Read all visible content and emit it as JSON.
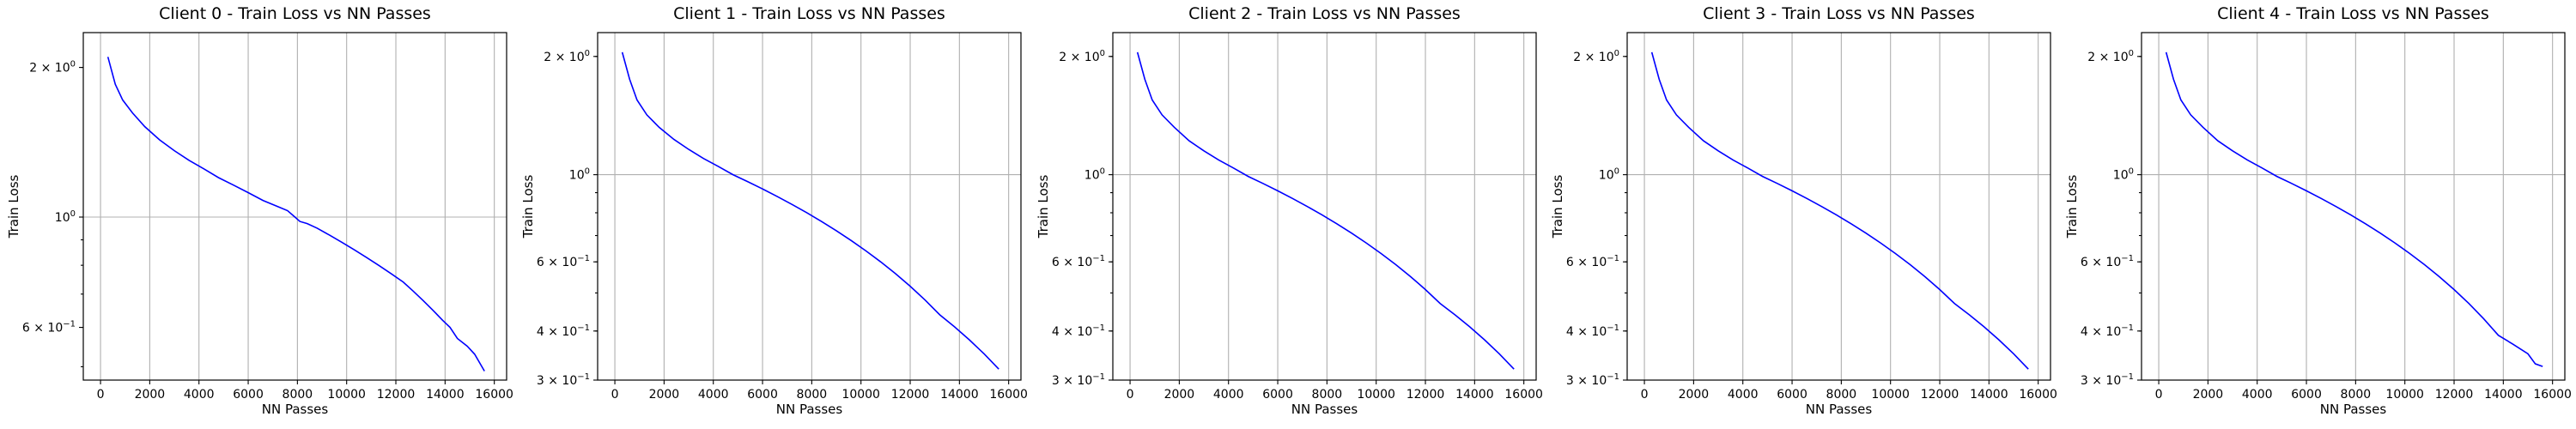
{
  "chart_data": [
    {
      "type": "line",
      "title": "Client 0 - Train Loss vs NN Passes",
      "xlabel": "NN Passes",
      "ylabel": "Train Loss",
      "yscale": "log",
      "xlim": [
        -700,
        16500
      ],
      "ylim": [
        0.47,
        2.35
      ],
      "grid": true,
      "xticks": [
        0,
        2000,
        4000,
        6000,
        8000,
        10000,
        12000,
        14000,
        16000
      ],
      "xtick_labels": [
        "0",
        "2000",
        "4000",
        "6000",
        "8000",
        "10000",
        "12000",
        "14000",
        "16000"
      ],
      "yticks": [
        {
          "value": 2.0,
          "base": "2 × 10",
          "exp": "0"
        },
        {
          "value": 1.0,
          "base": "10",
          "exp": "0"
        },
        {
          "value": 0.6,
          "base": "6 × 10",
          "exp": "−1"
        }
      ],
      "series": [
        {
          "name": "train loss",
          "color": "#0000ff",
          "x": [
            300,
            600,
            900,
            1300,
            1800,
            2400,
            3000,
            3600,
            4200,
            4800,
            5400,
            6000,
            6600,
            7200,
            7600,
            7900,
            8100,
            8400,
            8800,
            9300,
            9800,
            10300,
            10800,
            11300,
            11800,
            12300,
            12700,
            13100,
            13500,
            13900,
            14200,
            14500,
            14900,
            15200,
            15600
          ],
          "y": [
            2.1,
            1.85,
            1.72,
            1.62,
            1.52,
            1.43,
            1.36,
            1.3,
            1.25,
            1.2,
            1.16,
            1.12,
            1.08,
            1.05,
            1.03,
            1.0,
            0.98,
            0.97,
            0.95,
            0.92,
            0.89,
            0.86,
            0.83,
            0.8,
            0.77,
            0.74,
            0.71,
            0.68,
            0.65,
            0.62,
            0.6,
            0.57,
            0.55,
            0.53,
            0.49
          ]
        }
      ]
    },
    {
      "type": "line",
      "title": "Client 1 - Train Loss vs NN Passes",
      "xlabel": "NN Passes",
      "ylabel": "Train Loss",
      "yscale": "log",
      "xlim": [
        -700,
        16500
      ],
      "ylim": [
        0.3,
        2.3
      ],
      "grid": true,
      "xticks": [
        0,
        2000,
        4000,
        6000,
        8000,
        10000,
        12000,
        14000,
        16000
      ],
      "xtick_labels": [
        "0",
        "2000",
        "4000",
        "6000",
        "8000",
        "10000",
        "12000",
        "14000",
        "16000"
      ],
      "yticks": [
        {
          "value": 2.0,
          "base": "2 × 10",
          "exp": "0"
        },
        {
          "value": 1.0,
          "base": "10",
          "exp": "0"
        },
        {
          "value": 0.6,
          "base": "6 × 10",
          "exp": "−1"
        },
        {
          "value": 0.4,
          "base": "4 × 10",
          "exp": "−1"
        },
        {
          "value": 0.3,
          "base": "3 × 10",
          "exp": "−1"
        }
      ],
      "series": [
        {
          "name": "train loss",
          "color": "#0000ff",
          "x": [
            300,
            600,
            900,
            1300,
            1800,
            2400,
            3000,
            3600,
            4200,
            4800,
            5400,
            6000,
            6600,
            7200,
            7800,
            8400,
            9000,
            9600,
            10200,
            10800,
            11400,
            12000,
            12600,
            13200,
            13800,
            14400,
            15000,
            15600
          ],
          "y": [
            2.05,
            1.75,
            1.55,
            1.42,
            1.32,
            1.23,
            1.16,
            1.1,
            1.05,
            1.0,
            0.96,
            0.92,
            0.88,
            0.84,
            0.8,
            0.76,
            0.72,
            0.68,
            0.64,
            0.6,
            0.56,
            0.52,
            0.48,
            0.44,
            0.41,
            0.38,
            0.35,
            0.32
          ]
        }
      ]
    },
    {
      "type": "line",
      "title": "Client 2 - Train Loss vs NN Passes",
      "xlabel": "NN Passes",
      "ylabel": "Train Loss",
      "yscale": "log",
      "xlim": [
        -700,
        16500
      ],
      "ylim": [
        0.3,
        2.3
      ],
      "grid": true,
      "xticks": [
        0,
        2000,
        4000,
        6000,
        8000,
        10000,
        12000,
        14000,
        16000
      ],
      "xtick_labels": [
        "0",
        "2000",
        "4000",
        "6000",
        "8000",
        "10000",
        "12000",
        "14000",
        "16000"
      ],
      "yticks": [
        {
          "value": 2.0,
          "base": "2 × 10",
          "exp": "0"
        },
        {
          "value": 1.0,
          "base": "10",
          "exp": "0"
        },
        {
          "value": 0.6,
          "base": "6 × 10",
          "exp": "−1"
        },
        {
          "value": 0.4,
          "base": "4 × 10",
          "exp": "−1"
        },
        {
          "value": 0.3,
          "base": "3 × 10",
          "exp": "−1"
        }
      ],
      "series": [
        {
          "name": "train loss",
          "color": "#0000ff",
          "x": [
            300,
            600,
            900,
            1300,
            1800,
            2400,
            3000,
            3600,
            4200,
            4800,
            5400,
            6000,
            6600,
            7200,
            7800,
            8400,
            9000,
            9600,
            10200,
            10800,
            11400,
            12000,
            12600,
            13200,
            13800,
            14400,
            15000,
            15600
          ],
          "y": [
            2.05,
            1.75,
            1.55,
            1.42,
            1.32,
            1.22,
            1.15,
            1.09,
            1.04,
            0.99,
            0.95,
            0.91,
            0.87,
            0.83,
            0.79,
            0.75,
            0.71,
            0.67,
            0.63,
            0.59,
            0.55,
            0.51,
            0.47,
            0.44,
            0.41,
            0.38,
            0.35,
            0.32
          ]
        }
      ]
    },
    {
      "type": "line",
      "title": "Client 3 - Train Loss vs NN Passes",
      "xlabel": "NN Passes",
      "ylabel": "Train Loss",
      "yscale": "log",
      "xlim": [
        -700,
        16500
      ],
      "ylim": [
        0.3,
        2.3
      ],
      "grid": true,
      "xticks": [
        0,
        2000,
        4000,
        6000,
        8000,
        10000,
        12000,
        14000,
        16000
      ],
      "xtick_labels": [
        "0",
        "2000",
        "4000",
        "6000",
        "8000",
        "10000",
        "12000",
        "14000",
        "16000"
      ],
      "yticks": [
        {
          "value": 2.0,
          "base": "2 × 10",
          "exp": "0"
        },
        {
          "value": 1.0,
          "base": "10",
          "exp": "0"
        },
        {
          "value": 0.6,
          "base": "6 × 10",
          "exp": "−1"
        },
        {
          "value": 0.4,
          "base": "4 × 10",
          "exp": "−1"
        },
        {
          "value": 0.3,
          "base": "3 × 10",
          "exp": "−1"
        }
      ],
      "series": [
        {
          "name": "train loss",
          "color": "#0000ff",
          "x": [
            300,
            600,
            900,
            1300,
            1800,
            2400,
            3000,
            3600,
            4200,
            4800,
            5400,
            6000,
            6600,
            7200,
            7800,
            8400,
            9000,
            9600,
            10200,
            10800,
            11400,
            12000,
            12600,
            13200,
            13800,
            14400,
            15000,
            15600
          ],
          "y": [
            2.05,
            1.75,
            1.55,
            1.42,
            1.32,
            1.22,
            1.15,
            1.09,
            1.04,
            0.99,
            0.95,
            0.91,
            0.87,
            0.83,
            0.79,
            0.75,
            0.71,
            0.67,
            0.63,
            0.59,
            0.55,
            0.51,
            0.47,
            0.44,
            0.41,
            0.38,
            0.35,
            0.32
          ]
        }
      ]
    },
    {
      "type": "line",
      "title": "Client 4 - Train Loss vs NN Passes",
      "xlabel": "NN Passes",
      "ylabel": "Train Loss",
      "yscale": "log",
      "xlim": [
        -700,
        16500
      ],
      "ylim": [
        0.3,
        2.3
      ],
      "grid": true,
      "xticks": [
        0,
        2000,
        4000,
        6000,
        8000,
        10000,
        12000,
        14000,
        16000
      ],
      "xtick_labels": [
        "0",
        "2000",
        "4000",
        "6000",
        "8000",
        "10000",
        "12000",
        "14000",
        "16000"
      ],
      "yticks": [
        {
          "value": 2.0,
          "base": "2 × 10",
          "exp": "0"
        },
        {
          "value": 1.0,
          "base": "10",
          "exp": "0"
        },
        {
          "value": 0.6,
          "base": "6 × 10",
          "exp": "−1"
        },
        {
          "value": 0.4,
          "base": "4 × 10",
          "exp": "−1"
        },
        {
          "value": 0.3,
          "base": "3 × 10",
          "exp": "−1"
        }
      ],
      "series": [
        {
          "name": "train loss",
          "color": "#0000ff",
          "x": [
            300,
            600,
            900,
            1300,
            1800,
            2400,
            3000,
            3600,
            4200,
            4800,
            5400,
            6000,
            6600,
            7200,
            7800,
            8400,
            9000,
            9600,
            10200,
            10800,
            11400,
            12000,
            12600,
            13200,
            13800,
            14400,
            15000,
            15300,
            15600
          ],
          "y": [
            2.05,
            1.75,
            1.55,
            1.42,
            1.32,
            1.22,
            1.15,
            1.09,
            1.04,
            0.99,
            0.95,
            0.91,
            0.87,
            0.83,
            0.79,
            0.75,
            0.71,
            0.67,
            0.63,
            0.59,
            0.55,
            0.51,
            0.47,
            0.43,
            0.39,
            0.37,
            0.35,
            0.33,
            0.325
          ]
        }
      ]
    }
  ]
}
